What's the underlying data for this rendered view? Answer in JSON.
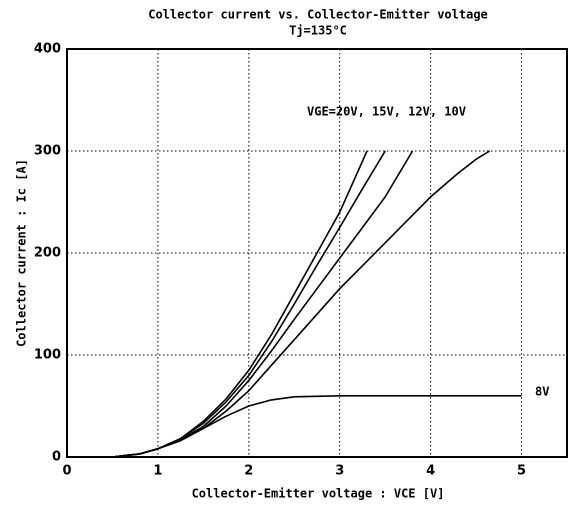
{
  "chart_data": {
    "type": "line",
    "title": "Collector current vs. Collector-Emitter voltage",
    "subtitle": "Tj=135°C",
    "x_label": "Collector-Emitter voltage : VCE [V]",
    "y_label": "Collector current : Ic [A]",
    "annotations": [
      "VGE=20V, 15V, 12V,    10V",
      "8V"
    ],
    "xlim": [
      0,
      5.5
    ],
    "ylim": [
      0,
      400
    ],
    "xticks": [
      0,
      1,
      2,
      3,
      4,
      5
    ],
    "yticks": [
      0,
      100,
      200,
      300,
      400
    ],
    "grid": true,
    "series": [
      {
        "color": "#000000",
        "x": [
          0.5,
          0.8,
          1,
          1.25,
          1.5,
          1.75,
          2,
          2.25,
          2.5,
          2.75,
          3,
          3.15,
          3.3
        ],
        "values": [
          0,
          3,
          8,
          18,
          35,
          57,
          85,
          120,
          160,
          200,
          240,
          270,
          300
        ]
      },
      {
        "color": "#000000",
        "x": [
          0.5,
          0.8,
          1,
          1.25,
          1.5,
          1.75,
          2,
          2.25,
          2.5,
          2.75,
          3,
          3.25,
          3.5
        ],
        "values": [
          0,
          3,
          8,
          18,
          33,
          54,
          80,
          113,
          150,
          188,
          225,
          263,
          300
        ]
      },
      {
        "color": "#000000",
        "x": [
          0.5,
          0.8,
          1,
          1.25,
          1.5,
          1.75,
          2,
          2.25,
          2.5,
          2.75,
          3,
          3.25,
          3.5,
          3.8
        ],
        "values": [
          0,
          3,
          8,
          17,
          30,
          50,
          75,
          104,
          135,
          165,
          195,
          225,
          255,
          300
        ]
      },
      {
        "color": "#000000",
        "x": [
          0.5,
          0.8,
          1,
          1.25,
          1.5,
          1.75,
          2,
          2.25,
          2.5,
          3,
          3.5,
          4,
          4.3,
          4.5,
          4.65
        ],
        "values": [
          0,
          3,
          8,
          16,
          28,
          45,
          65,
          90,
          115,
          165,
          210,
          255,
          278,
          292,
          300
        ]
      },
      {
        "color": "#000000",
        "x": [
          0.5,
          0.8,
          1,
          1.25,
          1.5,
          1.75,
          2,
          2.25,
          2.5,
          3,
          4,
          5
        ],
        "values": [
          0,
          3,
          8,
          17,
          28,
          40,
          50,
          56,
          59,
          60,
          60,
          60
        ]
      }
    ]
  }
}
